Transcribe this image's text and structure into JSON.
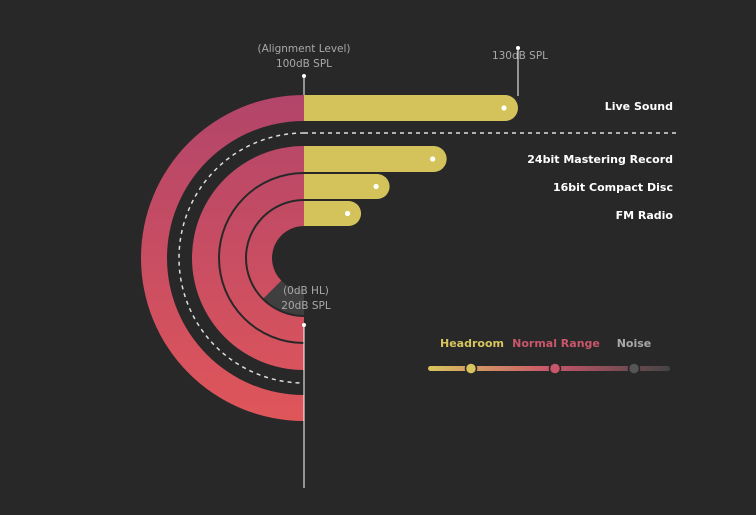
{
  "chart_data": {
    "type": "radial-bar",
    "title": "",
    "annotations": {
      "alignment_level": {
        "line1": "(Alignment Level)",
        "line2": "100dB SPL"
      },
      "max_level": {
        "text": "130dB SPL"
      },
      "hearing_threshold": {
        "line1": "(0dB HL)",
        "line2": "20dB SPL"
      }
    },
    "unit": "dB SPL",
    "scale": {
      "hearing_threshold_db": 20,
      "alignment_level_db": 100,
      "max_db": 130
    },
    "series": [
      {
        "name": "Live Sound",
        "noise_floor_db": 0,
        "max_level_db": 130
      },
      {
        "name": "24bit Mastering Record",
        "noise_floor_db": 0,
        "max_level_db": 120
      },
      {
        "name": "16bit Compact Disc",
        "noise_floor_db": 20,
        "max_level_db": 112
      },
      {
        "name": "FM Radio",
        "noise_floor_db": 40,
        "max_level_db": 108
      }
    ],
    "legend": {
      "placement": "bottom-right",
      "items": [
        {
          "name": "Headroom",
          "color": "#d8c45e"
        },
        {
          "name": "Normal Range",
          "color": "#c9566a"
        },
        {
          "name": "Noise",
          "color": "#555555"
        }
      ]
    },
    "colors": {
      "background": "#282828",
      "headroom": "#d4c35a",
      "normal_top": "#b2456a",
      "normal_bottom": "#e0565a",
      "noise": "#3f3f3f",
      "label": "#ffffff",
      "muted_label": "#a8a8a8"
    }
  }
}
